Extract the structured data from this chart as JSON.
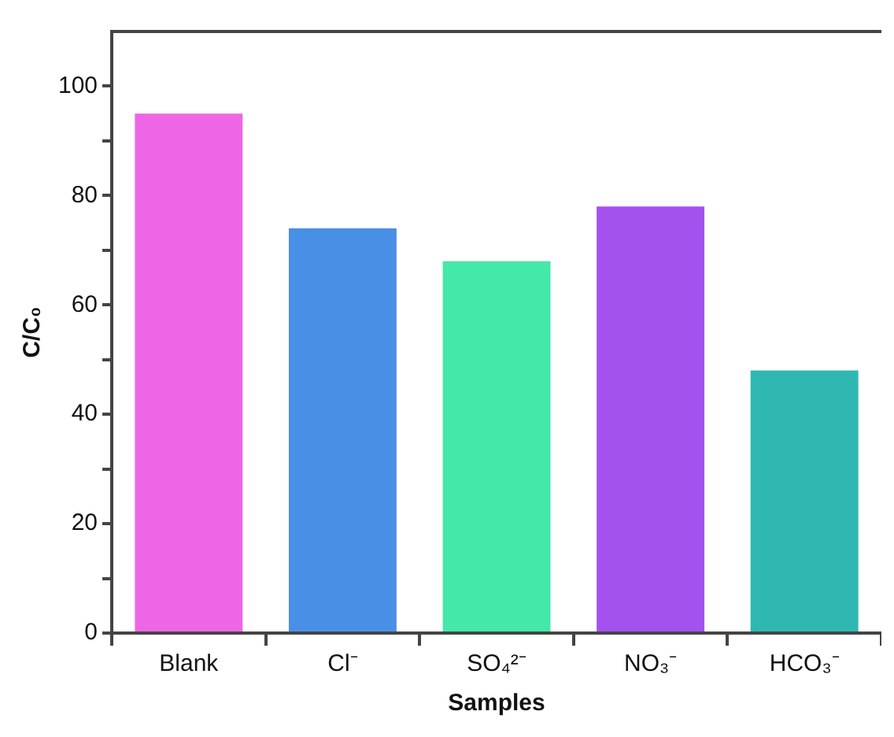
{
  "chart_data": {
    "type": "bar",
    "xlabel": "Samples",
    "ylabel": "C/C₀",
    "categories": [
      "Blank",
      "Cl⁻",
      "SO₄²⁻",
      "NO₃⁻",
      "HCO₃⁻"
    ],
    "values": [
      95,
      74,
      68,
      78,
      48
    ],
    "colors": [
      "#ee66e6",
      "#4a8fe6",
      "#44e8a8",
      "#a352ee",
      "#2fb8b2"
    ],
    "ylim": [
      0,
      110
    ],
    "yticks": [
      0,
      {
        "value": 10,
        "label": null
      },
      20,
      {
        "value": 30,
        "label": null
      },
      40,
      {
        "value": 50,
        "label": null
      },
      60,
      {
        "value": 70,
        "label": null
      },
      80,
      {
        "value": 90,
        "label": null
      },
      100
    ],
    "grid": false,
    "legend": false
  }
}
